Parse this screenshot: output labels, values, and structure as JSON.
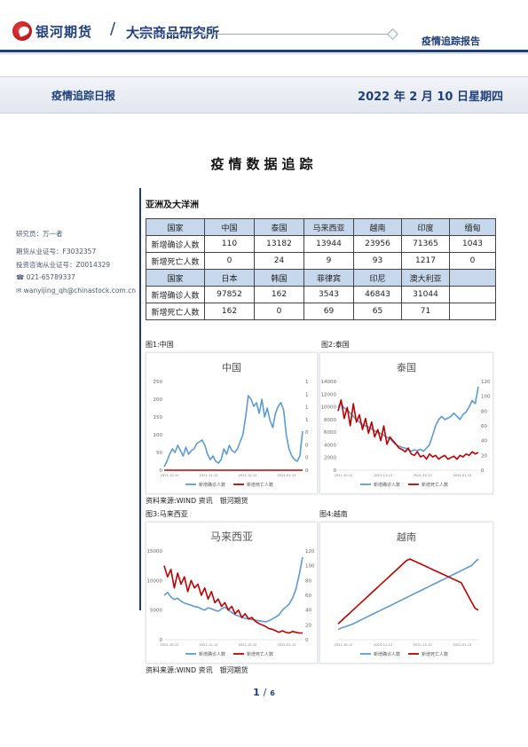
{
  "header": {
    "brand": "银河期货",
    "separator": "/",
    "institute": "大宗商品研究所",
    "report_type": "疫情追踪报告"
  },
  "banner": {
    "left": "疫情追踪日报",
    "date": "2022 年 2 月 10 日星期四"
  },
  "title": "疫情数据追踪",
  "sidebar": {
    "researcher": "研究员：万一者",
    "futures_cert": "期货从业证号：F3032357",
    "advisor_cert": "投资咨询从业证号：Z0014329",
    "phone": "021-65789337",
    "email": "wanyijing_qh@chinastock.com.cn"
  },
  "region": "亚洲及大洋洲",
  "table": {
    "rows": [
      [
        "国家",
        "中国",
        "泰国",
        "马来西亚",
        "越南",
        "印度",
        "缅甸"
      ],
      [
        "新增确诊人数",
        "110",
        "13182",
        "13944",
        "23956",
        "71365",
        "1043"
      ],
      [
        "新增死亡人数",
        "0",
        "24",
        "9",
        "93",
        "1217",
        "0"
      ],
      [
        "国家",
        "日本",
        "韩国",
        "菲律宾",
        "印尼",
        "澳大利亚",
        ""
      ],
      [
        "新增确诊人数",
        "97852",
        "162",
        "3543",
        "46843",
        "31044",
        ""
      ],
      [
        "新增死亡人数",
        "162",
        "0",
        "69",
        "65",
        "71",
        ""
      ]
    ]
  },
  "figures": {
    "fig1_caption": "图1:中国",
    "fig2_caption": "图2:泰国",
    "fig3_caption": "图3:马来西亚",
    "fig4_caption": "图4:越南",
    "source1": "资料来源:WIND 资讯　银河期货",
    "source2": "资料来源:WIND 资讯　银河期货"
  },
  "legend": {
    "cases": "新增确诊人数",
    "deaths": "新增死亡人数"
  },
  "colors": {
    "cases": "#5b9bd5",
    "deaths": "#c00000",
    "navy": "#1f3f7a",
    "table_header": "#c7d8ec"
  },
  "chart_data": [
    {
      "type": "line",
      "title": "中国",
      "x_ticks": [
        "2021-10-12",
        "2021-11-12",
        "2021-12-12",
        "2022-01-12"
      ],
      "ylim_left": [
        0,
        250
      ],
      "y_ticks_left": [
        "0",
        "50",
        "100",
        "150",
        "200",
        "250"
      ],
      "ylim_right": [
        0,
        1
      ],
      "y_ticks_right": [
        "0",
        "0",
        "0",
        "0",
        "1",
        "1",
        "1",
        "1"
      ],
      "series": [
        {
          "name": "新增确诊人数",
          "values": [
            10,
            25,
            45,
            60,
            50,
            70,
            55,
            40,
            65,
            45,
            55,
            60,
            75,
            80,
            85,
            70,
            45,
            30,
            40,
            25,
            20,
            30,
            60,
            45,
            70,
            55,
            50,
            60,
            80,
            100,
            150,
            210,
            200,
            180,
            190,
            160,
            200,
            150,
            175,
            140,
            120,
            160,
            180,
            190,
            170,
            100,
            60,
            40,
            30,
            25,
            40,
            110
          ]
        },
        {
          "name": "新增死亡人数",
          "values": [
            0,
            0,
            0,
            0,
            0,
            0,
            0,
            0,
            0,
            0,
            0,
            0,
            0,
            0,
            0,
            0,
            0,
            0,
            0,
            0,
            0,
            0,
            0,
            0,
            0,
            0,
            0,
            0,
            0,
            0,
            0,
            0,
            0,
            0,
            0,
            0,
            0,
            0,
            0,
            0,
            0,
            0,
            0,
            0,
            0,
            0,
            0,
            0,
            0,
            0,
            0,
            0
          ]
        }
      ]
    },
    {
      "type": "line",
      "title": "泰国",
      "x_ticks": [
        "2021-10-12",
        "2021-11-12",
        "2021-12-12",
        "2022-01-12"
      ],
      "ylim_left": [
        0,
        14000
      ],
      "y_ticks_left": [
        "0",
        "2000",
        "4000",
        "6000",
        "8000",
        "10000",
        "12000",
        "14000"
      ],
      "ylim_right": [
        0,
        120
      ],
      "y_ticks_right": [
        "0",
        "20",
        "40",
        "60",
        "80",
        "100",
        "120"
      ],
      "series": [
        {
          "name": "新增确诊人数",
          "values": [
            10000,
            10500,
            9800,
            9500,
            9000,
            8500,
            8000,
            7600,
            7200,
            7000,
            6800,
            6500,
            6200,
            6000,
            5800,
            5500,
            5200,
            5000,
            4500,
            4000,
            3800,
            3600,
            3500,
            3200,
            3000,
            3200,
            3100,
            3300,
            3000,
            3500,
            4000,
            5500,
            7000,
            8000,
            8500,
            8000,
            8200,
            8500,
            9000,
            8500,
            8000,
            8800,
            9200,
            10000,
            11000,
            10500,
            13182
          ]
        },
        {
          "name": "新增死亡人数",
          "values": [
            80,
            95,
            70,
            85,
            60,
            90,
            65,
            75,
            55,
            70,
            50,
            65,
            45,
            55,
            40,
            60,
            35,
            45,
            40,
            35,
            30,
            28,
            25,
            30,
            22,
            20,
            25,
            18,
            20,
            15,
            22,
            18,
            20,
            15,
            18,
            20,
            15,
            17,
            19,
            15,
            20,
            18,
            22,
            20,
            25,
            22,
            24
          ]
        }
      ]
    },
    {
      "type": "line",
      "title": "马来西亚",
      "x_ticks": [
        "2021-10-12",
        "2021-11-12",
        "2021-12-12",
        "2022-01-12"
      ],
      "ylim_left": [
        0,
        15000
      ],
      "y_ticks_left": [
        "0",
        "5000",
        "10000",
        "15000"
      ],
      "ylim_right": [
        0,
        120
      ],
      "y_ticks_right": [
        "0",
        "20",
        "40",
        "60",
        "80",
        "100",
        "120"
      ],
      "series": [
        {
          "name": "新增确诊人数",
          "values": [
            7500,
            8000,
            7200,
            6800,
            7000,
            6500,
            6200,
            6000,
            5800,
            5600,
            5500,
            5200,
            5000,
            5400,
            5200,
            5000,
            4800,
            5200,
            5500,
            5000,
            4600,
            4200,
            4000,
            3800,
            3600,
            3500,
            3400,
            3300,
            3200,
            3100,
            3000,
            3200,
            3500,
            3800,
            4200,
            5000,
            5500,
            6000,
            7000,
            8500,
            11000,
            13944
          ]
        },
        {
          "name": "新增死亡人数",
          "values": [
            100,
            85,
            95,
            70,
            90,
            75,
            85,
            65,
            80,
            70,
            75,
            60,
            70,
            55,
            65,
            50,
            55,
            45,
            50,
            40,
            45,
            35,
            40,
            30,
            35,
            28,
            30,
            25,
            22,
            20,
            18,
            15,
            14,
            12,
            10,
            12,
            10,
            9,
            11,
            10,
            9,
            9
          ]
        }
      ]
    },
    {
      "type": "line",
      "title": "越南",
      "x_ticks": [
        "2021-10-12",
        "2021-11-12",
        "2021-12-12",
        "2022-01-12"
      ],
      "series": [
        {
          "name": "新增确诊人数",
          "values": [
            3000,
            3500,
            3800,
            4200,
            4500,
            5000,
            5500,
            6000,
            6500,
            7000,
            7500,
            8000,
            8500,
            9000,
            9500,
            10000,
            10500,
            11000,
            11500,
            12000,
            12500,
            13000,
            13500,
            14000,
            14500,
            15000,
            15500,
            16000,
            16500,
            17000,
            17500,
            18000,
            18500,
            19000,
            19500,
            20000,
            20500,
            21000,
            21500,
            22000,
            23000,
            23956
          ]
        },
        {
          "name": "新增死亡人数",
          "values": [
            50,
            60,
            70,
            80,
            90,
            100,
            110,
            120,
            130,
            140,
            150,
            160,
            170,
            180,
            190,
            200,
            210,
            220,
            230,
            240,
            250,
            255,
            250,
            245,
            240,
            235,
            230,
            225,
            220,
            215,
            210,
            205,
            200,
            195,
            190,
            185,
            180,
            160,
            140,
            120,
            100,
            93
          ]
        }
      ]
    }
  ],
  "pager": {
    "current": "1",
    "sep": "/",
    "total": "6"
  }
}
